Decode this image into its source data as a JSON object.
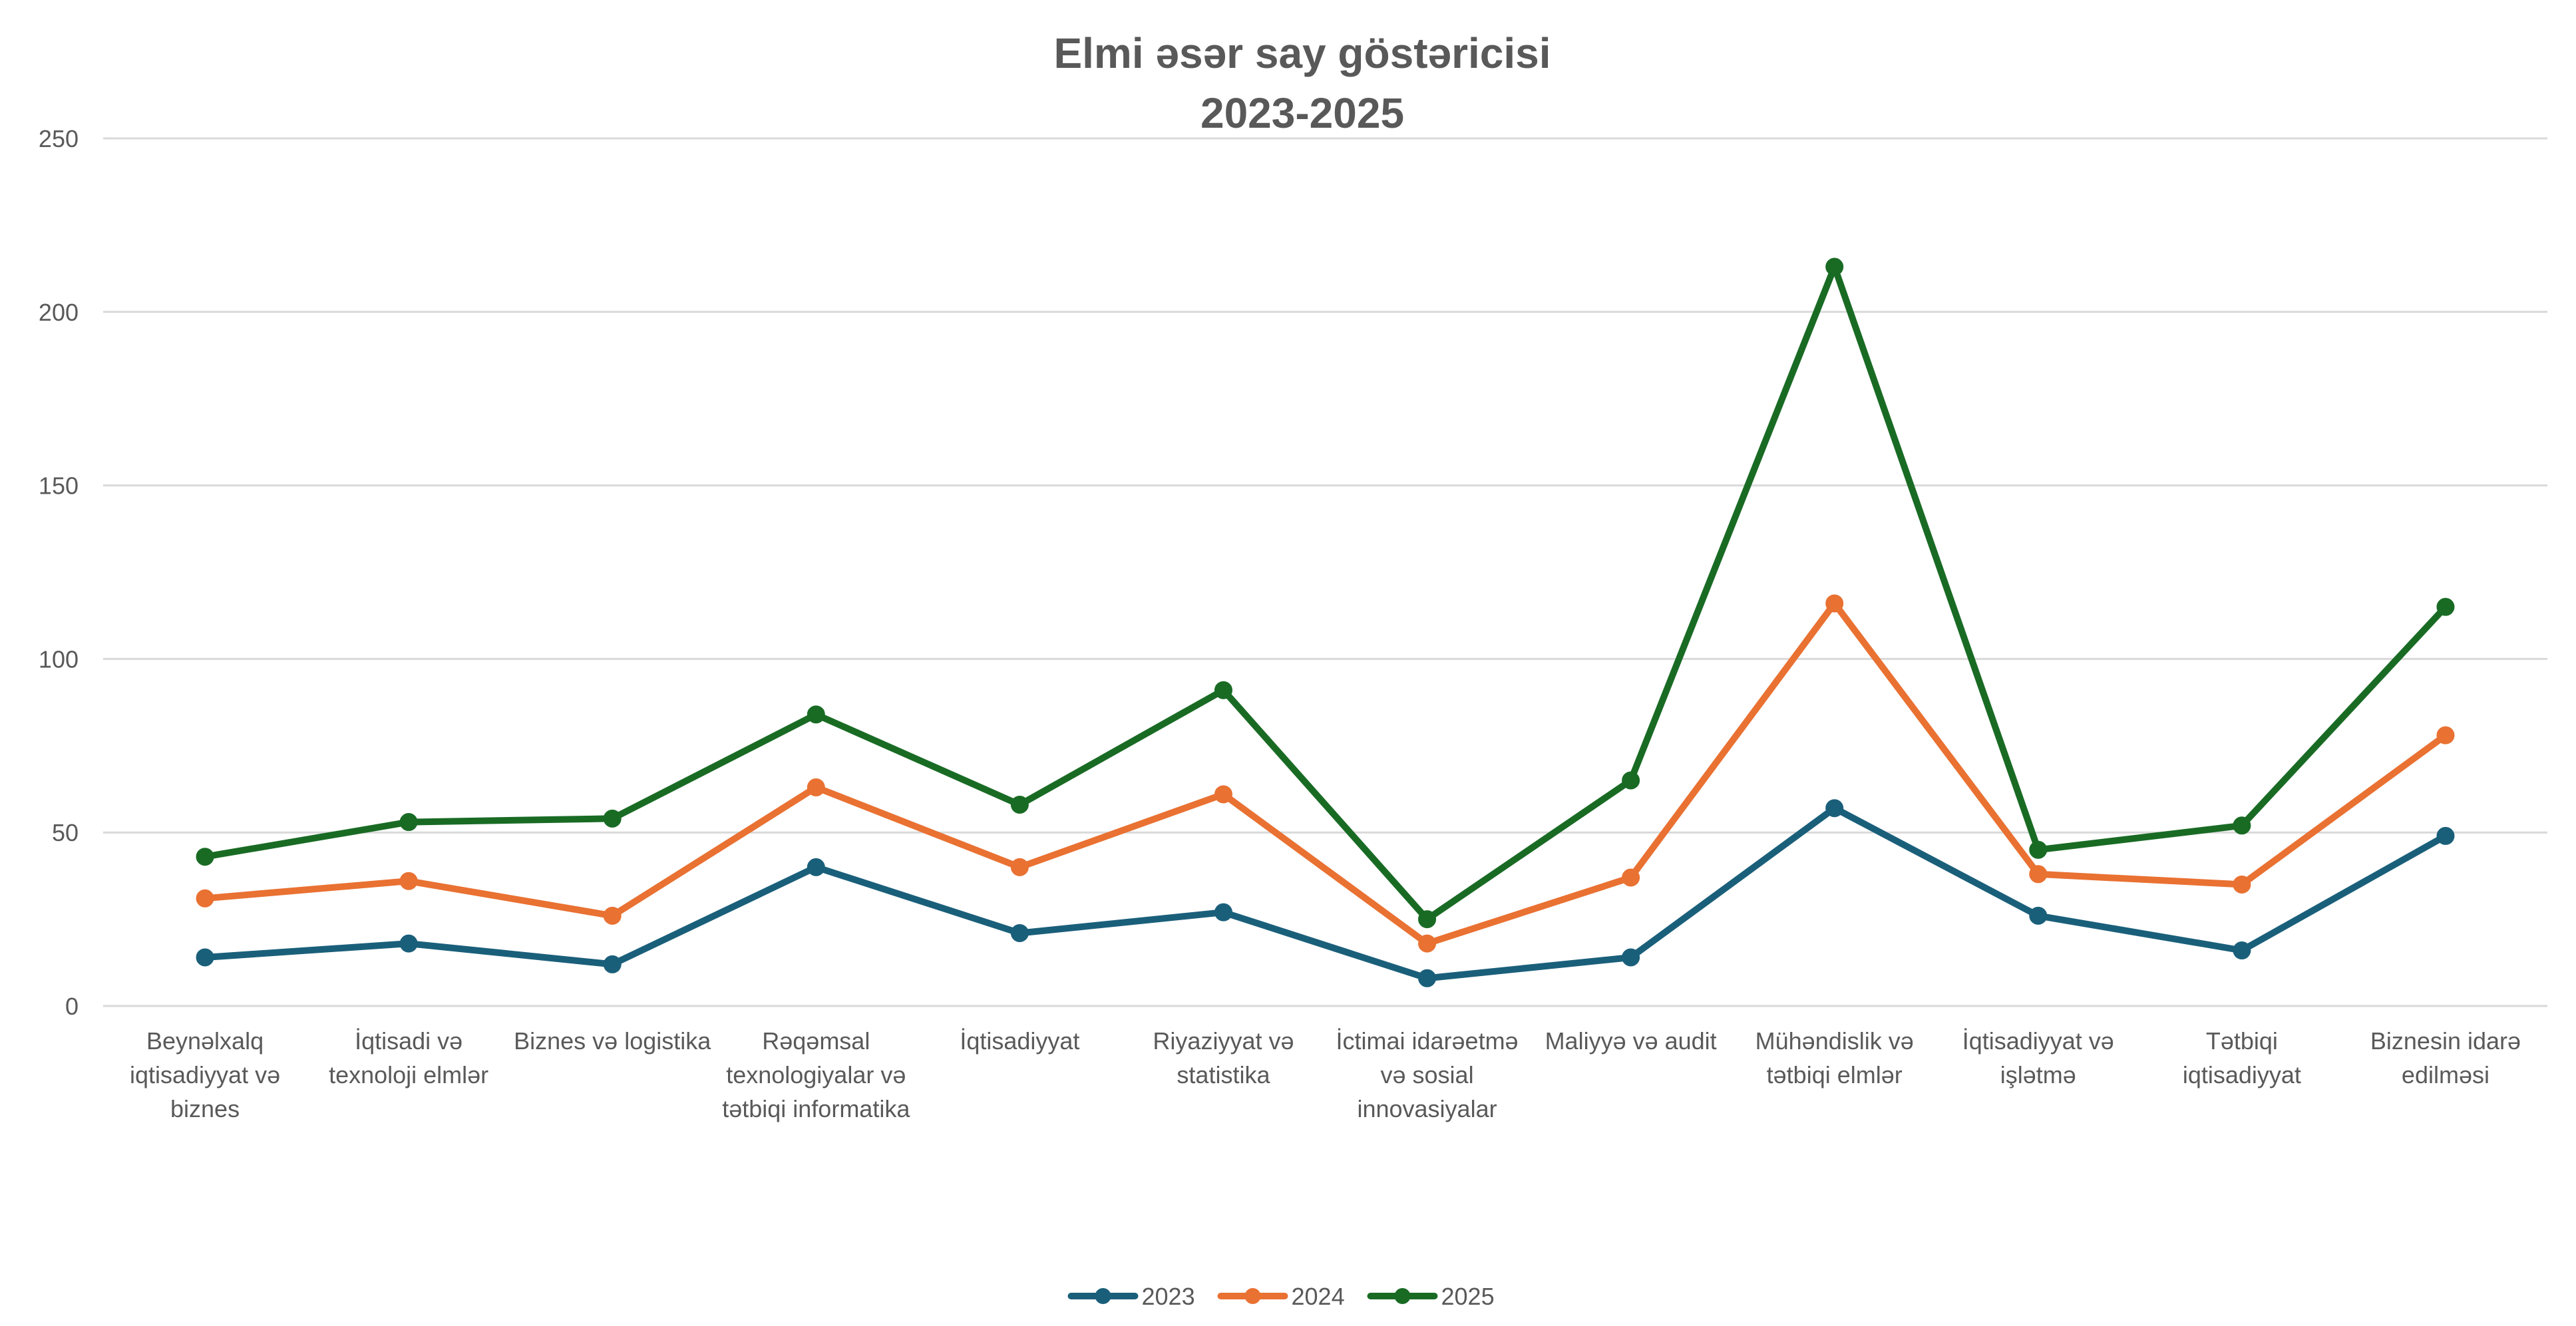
{
  "chart_data": {
    "type": "line",
    "title_lines": [
      "Elmi əsər say göstəricisi",
      "2023-2025"
    ],
    "xlabel": "",
    "ylabel": "",
    "ylim": [
      0,
      250
    ],
    "yticks": [
      0,
      50,
      100,
      150,
      200,
      250
    ],
    "grid": true,
    "legend_position": "bottom",
    "categories": [
      [
        "Beynəlxalq",
        "iqtisadiyyat və",
        "biznes"
      ],
      [
        "İqtisadi və",
        "texnoloji elmlər"
      ],
      [
        "Biznes və logistika"
      ],
      [
        "Rəqəmsal",
        "texnologiyalar və",
        "tətbiqi informatika"
      ],
      [
        "İqtisadiyyat"
      ],
      [
        "Riyaziyyat və",
        "statistika"
      ],
      [
        "İctimai idarəetmə",
        "və sosial",
        "innovasiyalar"
      ],
      [
        "Maliyyə və audit"
      ],
      [
        "Mühəndislik və",
        "tətbiqi elmlər"
      ],
      [
        "İqtisadiyyat və",
        "işlətmə"
      ],
      [
        "Tətbiqi",
        "iqtisadiyyat"
      ],
      [
        "Biznesin idarə",
        "edilməsi"
      ]
    ],
    "series": [
      {
        "name": "2023",
        "color": "#1a5f7a",
        "values": [
          14,
          18,
          12,
          40,
          21,
          27,
          8,
          14,
          57,
          26,
          16,
          49
        ]
      },
      {
        "name": "2024",
        "color": "#e97132",
        "values": [
          31,
          36,
          26,
          63,
          40,
          61,
          18,
          37,
          116,
          38,
          35,
          78
        ]
      },
      {
        "name": "2025",
        "color": "#196b24",
        "values": [
          43,
          53,
          54,
          84,
          58,
          91,
          25,
          65,
          213,
          45,
          52,
          115
        ]
      }
    ]
  }
}
